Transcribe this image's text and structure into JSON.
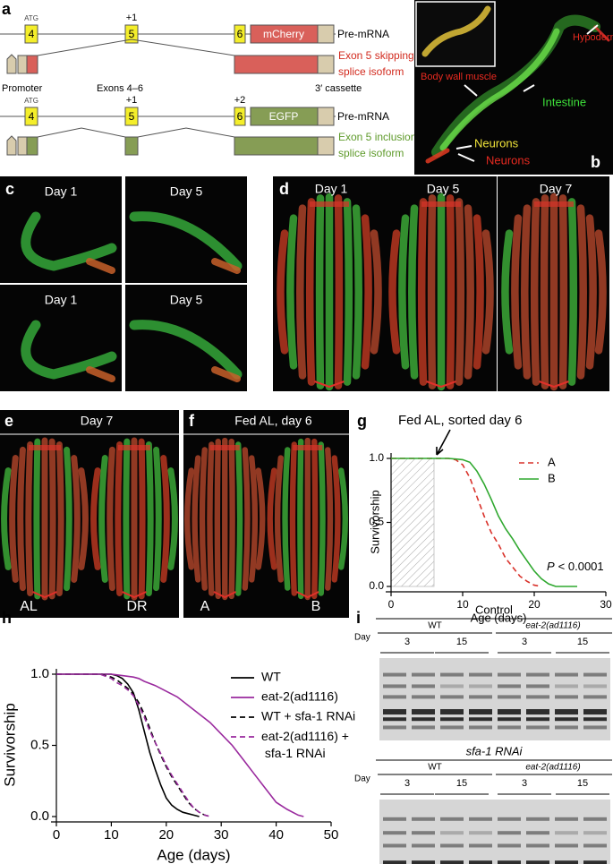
{
  "panel_a": {
    "label": "a",
    "construct1": {
      "atg": "ATG",
      "exon4": "4",
      "plus1": "+1",
      "exon5": "5",
      "exon6": "6",
      "reporter": "mCherry",
      "premrna": "Pre-mRNA",
      "isoform": [
        "Exon 5 skipping",
        "splice isoform"
      ]
    },
    "labels": {
      "promoter": "Promoter",
      "exons": "Exons 4–6",
      "cassette": "3′ cassette"
    },
    "construct2": {
      "atg": "ATG",
      "exon4": "4",
      "plus1": "+1",
      "exon5": "5",
      "plus2": "+2",
      "exon6": "6",
      "reporter": "EGFP",
      "premrna": "Pre-mRNA",
      "isoform": [
        "Exon 5 inclusion",
        "splice isoform"
      ]
    }
  },
  "panel_b": {
    "label": "b",
    "hypodermis": "Hypodermis",
    "muscle": "Body wall muscle",
    "intestine": "Intestine",
    "neurons_yellow": "Neurons",
    "neurons_red": "Neurons"
  },
  "panel_c": {
    "label": "c",
    "captions": [
      "Day 1",
      "Day 5",
      "Day 1",
      "Day 5"
    ]
  },
  "panel_d": {
    "label": "d",
    "captions": [
      "Day 1",
      "Day 5",
      "Day 7"
    ]
  },
  "panel_e": {
    "label": "e",
    "header": "Day 7",
    "captions": [
      "AL",
      "DR"
    ]
  },
  "panel_f": {
    "label": "f",
    "header": "Fed AL, day 6",
    "captions": [
      "A",
      "B"
    ]
  },
  "chart_data": [
    {
      "type": "line",
      "panel_label": "g",
      "annotation": "Fed AL, sorted day 6",
      "xlabel": "Age (days)",
      "ylabel": "Survivorship",
      "p_symbol": "P",
      "p_text": "< 0.0001",
      "shaded_x": [
        0,
        6
      ],
      "xlim": [
        0,
        30
      ],
      "xticks": [
        0,
        10,
        20,
        30
      ],
      "ylim": [
        0,
        1
      ],
      "yticks": [
        {
          "value": 0,
          "label": "0.0"
        },
        {
          "value": 0.5,
          "label": "0.5"
        },
        {
          "value": 1,
          "label": "1.0"
        }
      ],
      "series": [
        {
          "name": "A",
          "color": "#d9322b",
          "dashed": true,
          "x": [
            0,
            6,
            8,
            9,
            10,
            11,
            12,
            13,
            14,
            15,
            16,
            17,
            18,
            19,
            20,
            21
          ],
          "values": [
            1,
            1,
            1,
            0.99,
            0.95,
            0.85,
            0.7,
            0.55,
            0.42,
            0.33,
            0.22,
            0.15,
            0.08,
            0.04,
            0.01,
            0
          ]
        },
        {
          "name": "B",
          "color": "#2fa82f",
          "dashed": false,
          "x": [
            0,
            6,
            8,
            10,
            11,
            12,
            13,
            14,
            15,
            16,
            17,
            18,
            19,
            20,
            21,
            22,
            23,
            26
          ],
          "values": [
            1,
            1,
            1,
            0.99,
            0.97,
            0.9,
            0.8,
            0.68,
            0.55,
            0.45,
            0.37,
            0.28,
            0.2,
            0.12,
            0.06,
            0.02,
            0,
            0
          ]
        }
      ]
    },
    {
      "type": "line",
      "panel_label": "h",
      "xlabel": "Age (days)",
      "ylabel": "Survivorship",
      "xlim": [
        0,
        50
      ],
      "xticks": [
        0,
        10,
        20,
        30,
        40,
        50
      ],
      "ylim": [
        0,
        1
      ],
      "yticks": [
        {
          "value": 0,
          "label": "0.0"
        },
        {
          "value": 0.5,
          "label": "0.5"
        },
        {
          "value": 1,
          "label": "1.0"
        }
      ],
      "series": [
        {
          "name": "WT",
          "color": "#000000",
          "dashed": false,
          "x": [
            0,
            8,
            10,
            11,
            12,
            13,
            14,
            15,
            16,
            17,
            18,
            19,
            20,
            21,
            22,
            23,
            24,
            25,
            26
          ],
          "values": [
            1,
            1,
            1,
            0.99,
            0.97,
            0.93,
            0.87,
            0.75,
            0.6,
            0.45,
            0.33,
            0.22,
            0.13,
            0.08,
            0.05,
            0.03,
            0.02,
            0.01,
            0
          ]
        },
        {
          "name": "eat-2(ad1116)",
          "color": "#9a2a9e",
          "dashed": false,
          "x": [
            0,
            10,
            12,
            14,
            15,
            16,
            18,
            20,
            22,
            24,
            26,
            28,
            30,
            32,
            34,
            36,
            38,
            40,
            42,
            44,
            45
          ],
          "values": [
            1,
            1,
            0.99,
            0.98,
            0.97,
            0.95,
            0.92,
            0.88,
            0.84,
            0.78,
            0.72,
            0.66,
            0.58,
            0.5,
            0.4,
            0.3,
            0.2,
            0.1,
            0.05,
            0.01,
            0
          ]
        },
        {
          "name": "WT + sfa-1 RNAi",
          "color": "#000000",
          "dashed": true,
          "x": [
            0,
            8,
            10,
            11,
            12,
            13,
            14,
            15,
            16,
            17,
            18,
            19,
            20,
            21,
            22,
            23,
            24,
            25,
            26,
            27,
            28
          ],
          "values": [
            1,
            1,
            0.98,
            0.96,
            0.93,
            0.9,
            0.86,
            0.8,
            0.72,
            0.62,
            0.52,
            0.43,
            0.35,
            0.28,
            0.22,
            0.16,
            0.1,
            0.06,
            0.03,
            0.01,
            0
          ]
        },
        {
          "name": "eat-2(ad1116) + sfa-1 RNAi",
          "color": "#9a2a9e",
          "dashed": true,
          "x": [
            0,
            8,
            10,
            11,
            12,
            13,
            14,
            15,
            16,
            17,
            18,
            19,
            20,
            21,
            22,
            23,
            24,
            25,
            26,
            27,
            28
          ],
          "values": [
            1,
            1,
            0.97,
            0.94,
            0.92,
            0.89,
            0.85,
            0.78,
            0.7,
            0.6,
            0.52,
            0.44,
            0.36,
            0.29,
            0.23,
            0.17,
            0.11,
            0.06,
            0.03,
            0.01,
            0
          ]
        }
      ]
    }
  ],
  "panel_i": {
    "label": "i",
    "blocks": [
      {
        "title": "Control",
        "strains": [
          "WT",
          "eat-2(ad1116)"
        ],
        "day_label": "Day",
        "days": [
          "3",
          "15",
          "3",
          "15"
        ]
      },
      {
        "title": "sfa-1 RNAi",
        "strains": [
          "WT",
          "eat-2(ad1116)"
        ],
        "day_label": "Day",
        "days": [
          "3",
          "15",
          "3",
          "15"
        ]
      }
    ]
  }
}
